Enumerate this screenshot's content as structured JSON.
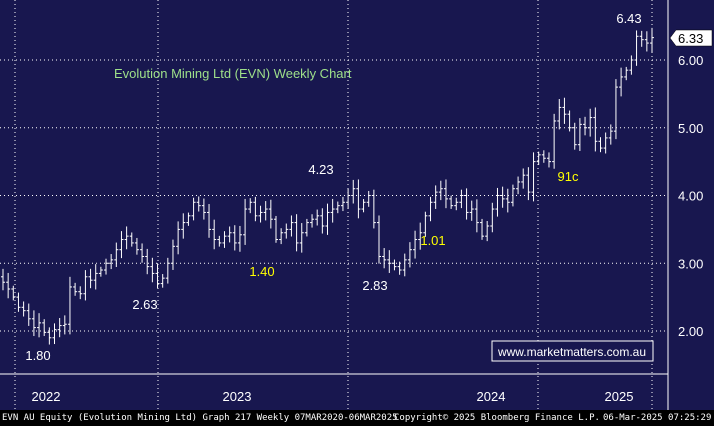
{
  "chart_data": {
    "type": "ohlc",
    "title": "Evolution Mining Ltd (EVN) Weekly Chart",
    "ylim": [
      1.5,
      6.9
    ],
    "y_ticks": [
      "2.00",
      "3.00",
      "4.00",
      "5.00",
      "6.00"
    ],
    "x_ticks": [
      "2022",
      "2023",
      "2024",
      "2025"
    ],
    "last_price": "6.33",
    "annotations": [
      {
        "text": "1.80",
        "x": "2022-03",
        "y": 1.8,
        "color": "#ffffff"
      },
      {
        "text": "2.63",
        "x": "2022-11",
        "y": 2.63,
        "color": "#ffffff"
      },
      {
        "text": "1.40",
        "x": "2023-03",
        "y": 2.65,
        "color": "#ffff00"
      },
      {
        "text": "4.23",
        "x": "2023-06",
        "y": 4.23,
        "color": "#ffffff"
      },
      {
        "text": "2.83",
        "x": "2023-08",
        "y": 2.83,
        "color": "#ffffff"
      },
      {
        "text": "1.01",
        "x": "2023-10",
        "y": 3.25,
        "color": "#ffff00"
      },
      {
        "text": "91c",
        "x": "2024-08",
        "y": 4.7,
        "color": "#ffff00"
      },
      {
        "text": "6.43",
        "x": "2025-01",
        "y": 6.43,
        "color": "#ffffff"
      }
    ],
    "weekly_close": [
      2.72,
      2.62,
      2.5,
      2.35,
      2.3,
      2.18,
      2.05,
      2.12,
      1.98,
      1.9,
      2.02,
      2.08,
      2.1,
      2.65,
      2.58,
      2.55,
      2.8,
      2.75,
      2.85,
      2.9,
      3.0,
      3.05,
      3.2,
      3.35,
      3.4,
      3.3,
      3.2,
      3.1,
      2.95,
      2.85,
      2.7,
      2.78,
      3.0,
      3.25,
      3.5,
      3.6,
      3.7,
      3.9,
      3.85,
      3.75,
      3.5,
      3.35,
      3.3,
      3.4,
      3.45,
      3.3,
      3.42,
      3.8,
      3.9,
      3.7,
      3.75,
      3.8,
      3.65,
      3.35,
      3.45,
      3.5,
      3.6,
      3.3,
      3.45,
      3.6,
      3.65,
      3.7,
      3.55,
      3.75,
      3.8,
      3.85,
      3.9,
      4.0,
      4.1,
      3.8,
      3.9,
      4.0,
      3.6,
      3.1,
      3.05,
      3.0,
      2.95,
      2.9,
      3.05,
      3.2,
      3.35,
      3.45,
      3.7,
      3.9,
      4.05,
      4.1,
      3.95,
      3.85,
      3.9,
      4.0,
      3.75,
      3.8,
      3.6,
      3.4,
      3.55,
      3.8,
      4.0,
      3.95,
      3.9,
      4.1,
      4.2,
      4.3,
      4.05,
      4.5,
      4.6,
      4.55,
      4.5,
      5.1,
      5.3,
      5.2,
      5.0,
      4.75,
      5.05,
      5.0,
      5.15,
      4.8,
      4.7,
      4.85,
      4.95,
      5.6,
      5.75,
      5.85,
      6.0,
      6.35,
      6.3,
      6.25,
      6.33
    ]
  },
  "footer": {
    "left": "EVN AU Equity (Evolution Mining Ltd) Graph 217  Weekly 07MAR2020-06MAR2025",
    "center": "Copyright© 2025 Bloomberg Finance L.P.",
    "right": "06-Mar-2025 07:25:29"
  },
  "watermark": "www.marketmatters.com.au",
  "colors": {
    "background": "#18174f",
    "grid": "#ffffff",
    "bars": "#ffffff",
    "title": "#9ee08a",
    "label_yellow": "#ffff00",
    "watermark_text": "#ffffff"
  }
}
